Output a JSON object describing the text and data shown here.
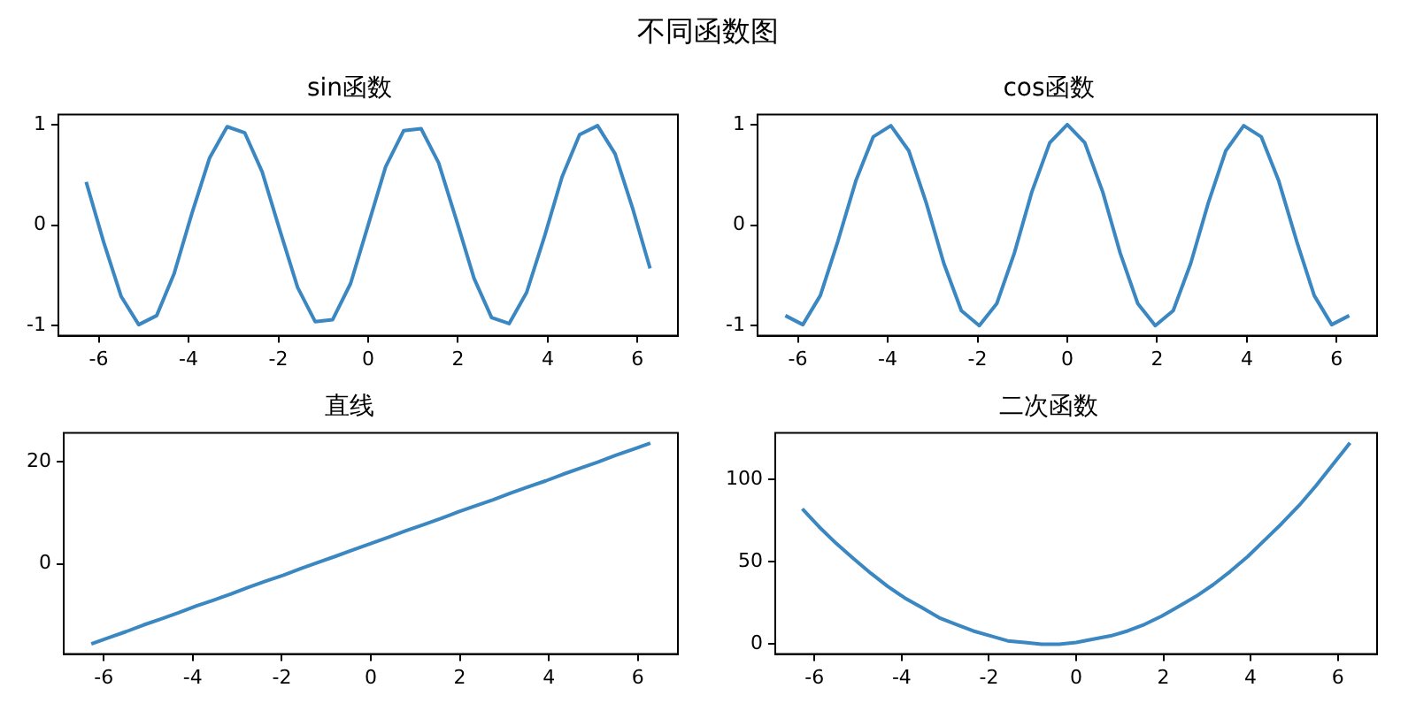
{
  "chart_data": [
    {
      "type": "other",
      "title": "不同函数图"
    },
    {
      "type": "line",
      "title": "sin函数",
      "x": [
        -6.28,
        -5.89,
        -5.5,
        -5.11,
        -4.71,
        -4.32,
        -3.93,
        -3.53,
        -3.14,
        -2.75,
        -2.36,
        -1.96,
        -1.57,
        -1.18,
        -0.79,
        -0.39,
        0,
        0.39,
        0.79,
        1.18,
        1.57,
        1.96,
        2.36,
        2.75,
        3.14,
        3.53,
        3.93,
        4.32,
        4.71,
        5.11,
        5.5,
        5.89,
        6.28
      ],
      "series": [
        {
          "color": "#3a87c2",
          "values": [
            0.43,
            -0.17,
            -0.71,
            -0.99,
            -0.9,
            -0.48,
            0.11,
            0.67,
            0.98,
            0.92,
            0.53,
            -0.06,
            -0.62,
            -0.96,
            -0.94,
            -0.58,
            0,
            0.58,
            0.94,
            0.96,
            0.62,
            0.06,
            -0.53,
            -0.92,
            -0.98,
            -0.67,
            -0.11,
            0.48,
            0.9,
            0.99,
            0.71,
            0.17,
            -0.43
          ]
        }
      ],
      "xlim": [
        -6.9,
        6.9
      ],
      "xticks": [
        -6,
        -4,
        -2,
        0,
        2,
        4,
        6
      ],
      "ylim": [
        -1.1,
        1.1
      ],
      "yticks": [
        -1,
        0,
        1
      ]
    },
    {
      "type": "line",
      "title": "cos函数",
      "x": [
        -6.28,
        -5.89,
        -5.5,
        -5.11,
        -4.71,
        -4.32,
        -3.93,
        -3.53,
        -3.14,
        -2.75,
        -2.36,
        -1.96,
        -1.57,
        -1.18,
        -0.79,
        -0.39,
        0,
        0.39,
        0.79,
        1.18,
        1.57,
        1.96,
        2.36,
        2.75,
        3.14,
        3.53,
        3.93,
        4.32,
        4.71,
        5.11,
        5.5,
        5.89,
        6.28
      ],
      "series": [
        {
          "color": "#3a87c2",
          "values": [
            -0.9,
            -0.99,
            -0.7,
            -0.16,
            0.44,
            0.88,
            0.99,
            0.74,
            0.22,
            -0.38,
            -0.85,
            -1,
            -0.78,
            -0.28,
            0.33,
            0.82,
            1,
            0.82,
            0.33,
            -0.28,
            -0.78,
            -1,
            -0.85,
            -0.38,
            0.22,
            0.74,
            0.99,
            0.88,
            0.44,
            -0.16,
            -0.7,
            -0.99,
            -0.9
          ]
        }
      ],
      "xlim": [
        -6.9,
        6.9
      ],
      "xticks": [
        -6,
        -4,
        -2,
        0,
        2,
        4,
        6
      ],
      "ylim": [
        -1.1,
        1.1
      ],
      "yticks": [
        -1,
        0,
        1
      ]
    },
    {
      "type": "line",
      "title": "直线",
      "x": [
        -6.28,
        -5.89,
        -5.5,
        -5.11,
        -4.71,
        -4.32,
        -3.93,
        -3.53,
        -3.14,
        -2.75,
        -2.36,
        -1.96,
        -1.57,
        -1.18,
        -0.79,
        -0.39,
        0,
        0.39,
        0.79,
        1.18,
        1.57,
        1.96,
        2.36,
        2.75,
        3.14,
        3.53,
        3.93,
        4.32,
        4.71,
        5.11,
        5.5,
        5.89,
        6.28
      ],
      "series": [
        {
          "color": "#3a87c2",
          "values": [
            -15.7,
            -14.5,
            -13.3,
            -12,
            -10.8,
            -9.6,
            -8.3,
            -7.1,
            -5.9,
            -4.6,
            -3.4,
            -2.2,
            -0.9,
            0.3,
            1.5,
            2.8,
            4,
            5.2,
            6.5,
            7.7,
            8.9,
            10.2,
            11.4,
            12.6,
            13.9,
            15.1,
            16.3,
            17.6,
            18.8,
            20,
            21.3,
            22.5,
            23.7
          ]
        }
      ],
      "xlim": [
        -6.9,
        6.9
      ],
      "xticks": [
        -6,
        -4,
        -2,
        0,
        2,
        4,
        6
      ],
      "ylim": [
        -17.7,
        25.7
      ],
      "yticks": [
        0,
        20
      ]
    },
    {
      "type": "line",
      "title": "二次函数",
      "x": [
        -6.28,
        -5.89,
        -5.5,
        -5.11,
        -4.71,
        -4.32,
        -3.93,
        -3.53,
        -3.14,
        -2.75,
        -2.36,
        -1.96,
        -1.57,
        -1.18,
        -0.79,
        -0.39,
        0,
        0.39,
        0.79,
        1.18,
        1.57,
        1.96,
        2.36,
        2.75,
        3.14,
        3.53,
        3.93,
        4.32,
        4.71,
        5.11,
        5.5,
        5.89,
        6.28
      ],
      "series": [
        {
          "color": "#3a87c2",
          "values": [
            82,
            71,
            61,
            52,
            43,
            35,
            28,
            22,
            16,
            12,
            8,
            5,
            2,
            1,
            0,
            0,
            1,
            3,
            5,
            8,
            12,
            17,
            23,
            29,
            36,
            44,
            53,
            63,
            73,
            84,
            96,
            109,
            122
          ]
        }
      ],
      "xlim": [
        -6.9,
        6.9
      ],
      "xticks": [
        -6,
        -4,
        -2,
        0,
        2,
        4,
        6
      ],
      "ylim": [
        -6,
        128
      ],
      "yticks": [
        0,
        50,
        100
      ]
    }
  ]
}
